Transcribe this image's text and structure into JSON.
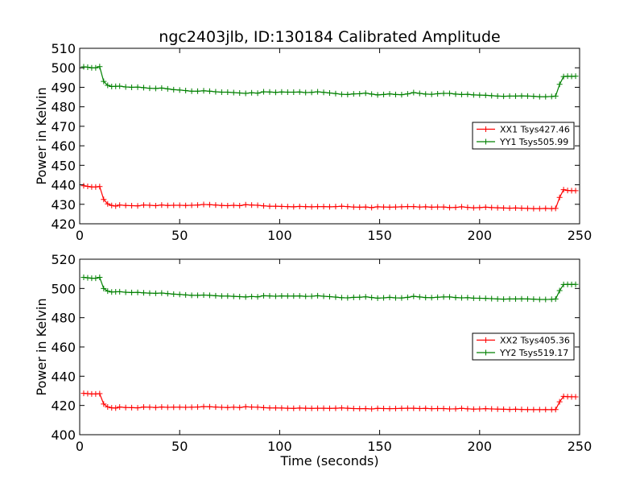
{
  "chart_data": [
    {
      "type": "line",
      "title": "ngc2403jlb, ID:130184 Calibrated Amplitude",
      "xlabel": "",
      "ylabel": "Power in Kelvin",
      "xlim": [
        0,
        250
      ],
      "ylim": [
        420,
        510
      ],
      "xticks": [
        0,
        50,
        100,
        150,
        200,
        250
      ],
      "yticks": [
        420,
        430,
        440,
        450,
        460,
        470,
        480,
        490,
        500,
        510
      ],
      "grid": false,
      "legend_position": "right",
      "x": [
        2,
        4,
        6,
        8,
        10,
        12,
        14,
        16,
        18,
        20,
        23,
        26,
        29,
        32,
        35,
        38,
        41,
        44,
        47,
        50,
        53,
        56,
        59,
        62,
        65,
        68,
        71,
        74,
        77,
        80,
        83,
        86,
        89,
        92,
        95,
        98,
        101,
        104,
        107,
        110,
        113,
        116,
        119,
        122,
        125,
        128,
        131,
        134,
        137,
        140,
        143,
        146,
        149,
        152,
        155,
        158,
        161,
        164,
        167,
        170,
        173,
        176,
        179,
        182,
        185,
        188,
        191,
        194,
        197,
        200,
        203,
        206,
        209,
        212,
        215,
        218,
        221,
        224,
        227,
        230,
        233,
        236,
        238,
        240,
        242,
        244,
        246,
        248
      ],
      "series": [
        {
          "name": "XX1 Tsys427.46",
          "color": "#ff0000",
          "values": [
            439.5,
            439.2,
            438.9,
            438.9,
            439.1,
            432.5,
            430.2,
            429.4,
            429.1,
            429.6,
            429.4,
            429.3,
            429.2,
            429.6,
            429.5,
            429.3,
            429.6,
            429.4,
            429.5,
            429.5,
            429.4,
            429.5,
            429.6,
            429.9,
            429.8,
            429.6,
            429.4,
            429.3,
            429.5,
            429.3,
            429.8,
            429.6,
            429.5,
            429.2,
            429.0,
            429.0,
            428.9,
            428.8,
            428.7,
            428.9,
            428.8,
            428.7,
            428.8,
            428.8,
            428.7,
            428.8,
            429.0,
            428.8,
            428.6,
            428.5,
            428.6,
            428.3,
            428.7,
            428.6,
            428.5,
            428.6,
            428.7,
            428.8,
            428.8,
            428.6,
            428.7,
            428.5,
            428.6,
            428.6,
            428.3,
            428.4,
            428.7,
            428.4,
            428.2,
            428.3,
            428.5,
            428.3,
            428.2,
            428.1,
            428.0,
            428.1,
            428.0,
            427.9,
            427.8,
            427.8,
            427.9,
            427.8,
            427.9,
            433.5,
            437.5,
            437.1,
            437.0,
            437.0
          ]
        },
        {
          "name": "YY1 Tsys505.99",
          "color": "#008000",
          "values": [
            500.5,
            500.3,
            500.0,
            500.0,
            500.6,
            493.0,
            491.0,
            490.4,
            490.5,
            490.6,
            490.2,
            490.0,
            490.1,
            489.8,
            489.5,
            489.4,
            489.6,
            489.2,
            488.8,
            488.6,
            488.3,
            488.0,
            488.0,
            488.2,
            488.0,
            487.7,
            487.5,
            487.5,
            487.3,
            487.1,
            486.9,
            487.2,
            487.0,
            487.7,
            487.6,
            487.4,
            487.6,
            487.5,
            487.5,
            487.6,
            487.3,
            487.4,
            487.7,
            487.4,
            487.1,
            486.8,
            486.4,
            486.3,
            486.6,
            486.7,
            487.0,
            486.5,
            486.1,
            486.3,
            486.6,
            486.3,
            486.2,
            486.6,
            487.3,
            486.9,
            486.5,
            486.4,
            486.7,
            486.9,
            486.9,
            486.5,
            486.3,
            486.4,
            486.1,
            486.0,
            485.9,
            485.7,
            485.5,
            485.4,
            485.5,
            485.5,
            485.6,
            485.5,
            485.4,
            485.2,
            485.2,
            485.3,
            485.5,
            491.5,
            495.5,
            495.7,
            495.6,
            495.7
          ]
        }
      ]
    },
    {
      "type": "line",
      "title": "",
      "xlabel": "Time (seconds)",
      "ylabel": "Power in Kelvin",
      "xlim": [
        0,
        250
      ],
      "ylim": [
        400,
        520
      ],
      "xticks": [
        0,
        50,
        100,
        150,
        200,
        250
      ],
      "yticks": [
        400,
        420,
        440,
        460,
        480,
        500,
        520
      ],
      "grid": false,
      "legend_position": "right",
      "x": [
        2,
        4,
        6,
        8,
        10,
        12,
        14,
        16,
        18,
        20,
        23,
        26,
        29,
        32,
        35,
        38,
        41,
        44,
        47,
        50,
        53,
        56,
        59,
        62,
        65,
        68,
        71,
        74,
        77,
        80,
        83,
        86,
        89,
        92,
        95,
        98,
        101,
        104,
        107,
        110,
        113,
        116,
        119,
        122,
        125,
        128,
        131,
        134,
        137,
        140,
        143,
        146,
        149,
        152,
        155,
        158,
        161,
        164,
        167,
        170,
        173,
        176,
        179,
        182,
        185,
        188,
        191,
        194,
        197,
        200,
        203,
        206,
        209,
        212,
        215,
        218,
        221,
        224,
        227,
        230,
        233,
        236,
        238,
        240,
        242,
        244,
        246,
        248
      ],
      "series": [
        {
          "name": "XX2 Tsys405.36",
          "color": "#ff0000",
          "values": [
            428.3,
            428.1,
            427.9,
            427.9,
            428.1,
            421.0,
            419.0,
            418.4,
            418.2,
            418.9,
            418.6,
            418.5,
            418.4,
            418.9,
            418.8,
            418.6,
            418.9,
            418.7,
            418.8,
            418.8,
            418.7,
            418.8,
            418.9,
            419.2,
            419.1,
            418.9,
            418.7,
            418.6,
            418.8,
            418.6,
            419.1,
            418.9,
            418.8,
            418.5,
            418.3,
            418.3,
            418.2,
            418.1,
            418.0,
            418.2,
            418.1,
            418.0,
            418.1,
            418.1,
            418.0,
            418.1,
            418.3,
            418.1,
            417.9,
            417.8,
            417.9,
            417.6,
            418.0,
            417.9,
            417.8,
            417.9,
            418.0,
            418.1,
            418.1,
            417.9,
            418.0,
            417.8,
            417.9,
            417.9,
            417.6,
            417.7,
            418.0,
            417.7,
            417.5,
            417.6,
            417.8,
            417.6,
            417.5,
            417.4,
            417.3,
            417.4,
            417.3,
            417.2,
            417.1,
            417.1,
            417.2,
            417.1,
            417.2,
            422.5,
            426.2,
            426.0,
            425.9,
            425.9
          ]
        },
        {
          "name": "YY2 Tsys519.17",
          "color": "#008000",
          "values": [
            507.6,
            507.3,
            507.0,
            507.0,
            507.6,
            500.0,
            498.2,
            497.6,
            497.7,
            497.8,
            497.4,
            497.2,
            497.3,
            497.0,
            496.8,
            496.7,
            496.9,
            496.5,
            496.1,
            495.9,
            495.6,
            495.3,
            495.3,
            495.5,
            495.3,
            495.0,
            494.8,
            494.8,
            494.6,
            494.4,
            494.2,
            494.5,
            494.3,
            495.0,
            494.9,
            494.7,
            494.9,
            494.8,
            494.8,
            494.9,
            494.6,
            494.7,
            495.0,
            494.7,
            494.4,
            494.1,
            493.7,
            493.6,
            493.9,
            494.0,
            494.3,
            493.8,
            493.4,
            493.6,
            493.9,
            493.6,
            493.5,
            493.9,
            494.6,
            494.2,
            493.8,
            493.7,
            494.0,
            494.2,
            494.2,
            493.8,
            493.6,
            493.7,
            493.4,
            493.3,
            493.2,
            493.0,
            492.8,
            492.7,
            492.8,
            492.8,
            492.9,
            492.8,
            492.7,
            492.5,
            492.5,
            492.6,
            492.8,
            498.5,
            502.7,
            502.8,
            502.7,
            502.8
          ]
        }
      ]
    }
  ]
}
